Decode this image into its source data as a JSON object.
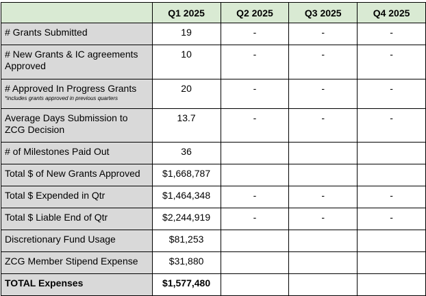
{
  "header": {
    "corner": "",
    "quarters": [
      "Q1 2025",
      "Q2 2025",
      "Q3 2025",
      "Q4 2025"
    ]
  },
  "rows": [
    {
      "label": "# Grants Submitted",
      "note": "",
      "values": [
        "19",
        "-",
        "-",
        "-"
      ]
    },
    {
      "label": "# New Grants & IC agreements Approved",
      "note": "",
      "values": [
        "10",
        "-",
        "-",
        "-"
      ]
    },
    {
      "label": "# Approved In Progress Grants",
      "note": "*includes grants approved in previous quarters",
      "values": [
        "20",
        "-",
        "-",
        "-"
      ]
    },
    {
      "label": "Average Days Submission to ZCG Decision",
      "note": "",
      "values": [
        "13.7",
        "-",
        "-",
        "-"
      ]
    },
    {
      "label": "# of Milestones Paid Out",
      "note": "",
      "values": [
        "36",
        "",
        "",
        ""
      ]
    },
    {
      "label": "Total $ of New Grants Approved",
      "note": "",
      "values": [
        "$1,668,787",
        "",
        "",
        ""
      ]
    },
    {
      "label": "Total $ Expended in Qtr",
      "note": "",
      "values": [
        "$1,464,348",
        "-",
        "-",
        "-"
      ]
    },
    {
      "label": "Total $ Liable End of Qtr",
      "note": "",
      "values": [
        "$2,244,919",
        "-",
        "-",
        "-"
      ]
    },
    {
      "label": "Discretionary Fund Usage",
      "note": "",
      "values": [
        "$81,253",
        "",
        "",
        ""
      ]
    },
    {
      "label": "ZCG Member Stipend Expense",
      "note": "",
      "values": [
        "$31,880",
        "",
        "",
        ""
      ]
    },
    {
      "label": "TOTAL Expenses",
      "note": "",
      "values": [
        "$1,577,480",
        "",
        "",
        ""
      ]
    }
  ],
  "colors": {
    "header_bg": "#d9ead3",
    "label_bg": "#d9d9d9",
    "border": "#000000"
  }
}
